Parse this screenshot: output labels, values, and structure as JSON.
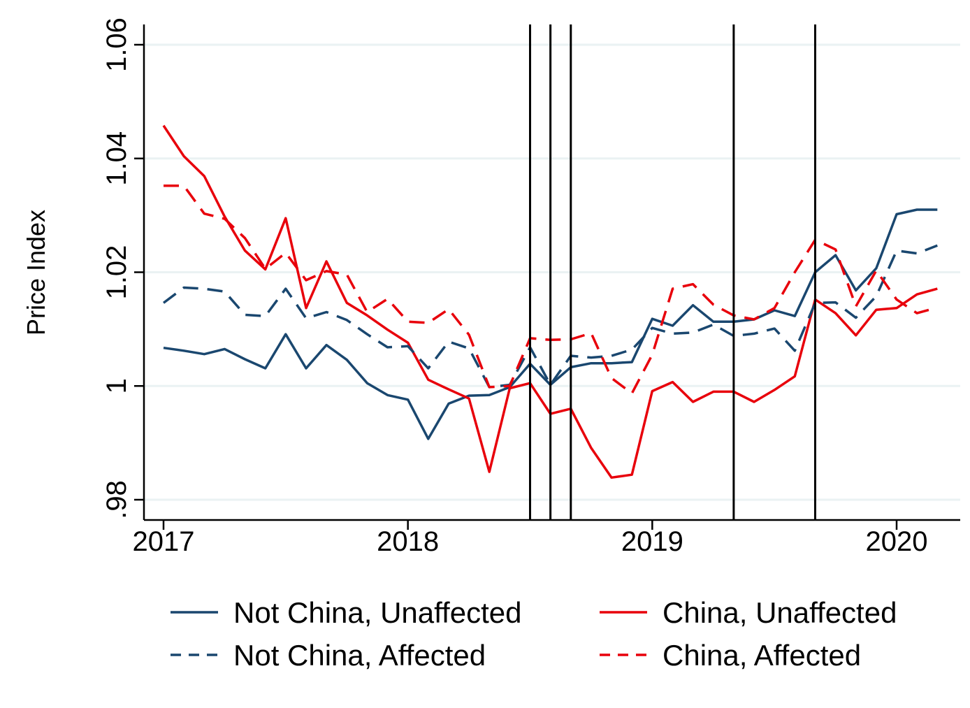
{
  "chart_data": {
    "type": "line",
    "title": "",
    "xlabel": "",
    "ylabel": "Price Index",
    "ylim": [
      0.976,
      1.062
    ],
    "xlim": [
      2016.92,
      2020.27
    ],
    "grid": true,
    "yticks": [
      0.98,
      1.0,
      1.02,
      1.04,
      1.06
    ],
    "ytick_labels": [
      ".98",
      "1",
      "1.02",
      "1.04",
      "1.06"
    ],
    "xticks": [
      2017,
      2018,
      2019,
      2020
    ],
    "xtick_labels": [
      "2017",
      "2018",
      "2019",
      "2020"
    ],
    "vertical_lines": [
      2018.5,
      2018.5833,
      2018.6667,
      2019.3333,
      2019.6667
    ],
    "legend_position": "bottom",
    "colors": {
      "navy": "#1a476f",
      "red": "#e8000b",
      "grid": "#eaf2f3",
      "axis": "#000000"
    },
    "x": [
      2017.0,
      2017.0833,
      2017.1667,
      2017.25,
      2017.3333,
      2017.4167,
      2017.5,
      2017.5833,
      2017.6667,
      2017.75,
      2017.8333,
      2017.9167,
      2018.0,
      2018.0833,
      2018.1667,
      2018.25,
      2018.3333,
      2018.4167,
      2018.5,
      2018.5833,
      2018.6667,
      2018.75,
      2018.8333,
      2018.9167,
      2019.0,
      2019.0833,
      2019.1667,
      2019.25,
      2019.3333,
      2019.4167,
      2019.5,
      2019.5833,
      2019.6667,
      2019.75,
      2019.8333,
      2019.9167,
      2020.0,
      2020.0833,
      2020.1667
    ],
    "series": [
      {
        "name": "Not China, Unaffected",
        "color": "#1a476f",
        "dash": "solid",
        "values": [
          1.0067,
          1.0062,
          1.0056,
          1.0065,
          1.0047,
          1.0031,
          1.0091,
          1.0031,
          1.0072,
          1.0046,
          1.0005,
          0.9984,
          0.9976,
          0.9907,
          0.9969,
          0.9983,
          0.9984,
          0.9998,
          1.0039,
          1.0002,
          1.0033,
          1.004,
          1.004,
          1.0042,
          1.0118,
          1.0106,
          1.0142,
          1.0113,
          1.0113,
          1.0117,
          1.0133,
          1.0123,
          1.02,
          1.023,
          1.0168,
          1.0207,
          1.0302,
          1.031,
          1.031
        ]
      },
      {
        "name": "China, Unaffected",
        "color": "#e8000b",
        "dash": "solid",
        "values": [
          1.0458,
          1.0404,
          1.0369,
          1.0298,
          1.0238,
          1.0205,
          1.0295,
          1.0137,
          1.0219,
          1.0146,
          1.0124,
          1.0099,
          1.0076,
          1.0011,
          0.9994,
          0.9978,
          0.9849,
          0.9996,
          1.0005,
          0.9951,
          0.996,
          0.9891,
          0.9839,
          0.9844,
          0.9991,
          1.0007,
          0.9972,
          0.999,
          0.999,
          0.9972,
          0.9993,
          1.0017,
          1.0152,
          1.0128,
          1.0089,
          1.0134,
          1.0137,
          1.0161,
          1.0171
        ]
      },
      {
        "name": "Not China, Affected",
        "color": "#1a476f",
        "dash": "dashed",
        "values": [
          1.0146,
          1.0173,
          1.0171,
          1.0166,
          1.0125,
          1.0123,
          1.0171,
          1.0119,
          1.013,
          1.0116,
          1.0091,
          1.0068,
          1.007,
          1.0031,
          1.0078,
          1.0066,
          0.9998,
          1.0002,
          1.0068,
          1.0002,
          1.0053,
          1.005,
          1.0053,
          1.0064,
          1.0102,
          1.0092,
          1.0094,
          1.0108,
          1.0088,
          1.0092,
          1.0101,
          1.0062,
          1.0146,
          1.0147,
          1.012,
          1.0158,
          1.0238,
          1.0233,
          1.0247
        ]
      },
      {
        "name": "China, Affected",
        "color": "#e8000b",
        "dash": "dashed",
        "values": [
          1.0352,
          1.0352,
          1.0303,
          1.0294,
          1.026,
          1.0206,
          1.0234,
          1.0186,
          1.0202,
          1.0196,
          1.013,
          1.0153,
          1.0113,
          1.0111,
          1.0135,
          1.009,
          0.9998,
          1.0,
          1.0084,
          1.0081,
          1.0082,
          1.0093,
          1.0014,
          0.9987,
          1.0055,
          1.0171,
          1.0179,
          1.0143,
          1.0124,
          1.0117,
          1.0137,
          1.02,
          1.0257,
          1.024,
          1.014,
          1.0203,
          1.0152,
          1.0128,
          1.0138
        ]
      }
    ],
    "legend": [
      {
        "label": "Not China, Unaffected",
        "color": "#1a476f",
        "dash": "solid"
      },
      {
        "label": "China, Unaffected",
        "color": "#e8000b",
        "dash": "solid"
      },
      {
        "label": "Not China, Affected",
        "color": "#1a476f",
        "dash": "dashed"
      },
      {
        "label": "China, Affected",
        "color": "#e8000b",
        "dash": "dashed"
      }
    ]
  }
}
